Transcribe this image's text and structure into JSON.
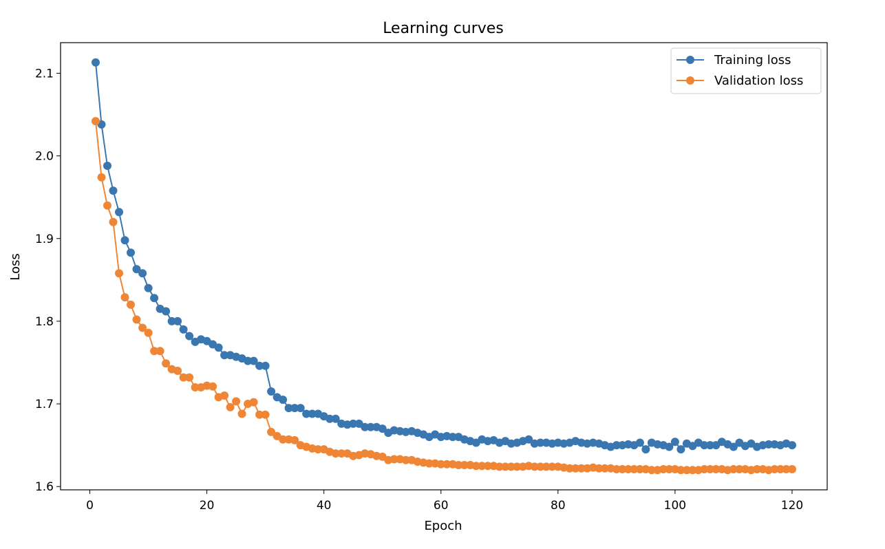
{
  "chart_data": {
    "type": "line",
    "title": "Learning curves",
    "xlabel": "Epoch",
    "ylabel": "Loss",
    "xlim": [
      -5.0,
      126.0
    ],
    "ylim": [
      1.596,
      2.137
    ],
    "xticks": [
      0,
      20,
      40,
      60,
      80,
      100,
      120
    ],
    "yticks": [
      1.6,
      1.7,
      1.8,
      1.9,
      2.0,
      2.1
    ],
    "legend_position": "top-right",
    "grid": false,
    "series": [
      {
        "name": "Training loss",
        "color": "#3a76af",
        "marker": "circle",
        "x": [
          1,
          2,
          3,
          4,
          5,
          6,
          7,
          8,
          9,
          10,
          11,
          12,
          13,
          14,
          15,
          16,
          17,
          18,
          19,
          20,
          21,
          22,
          23,
          24,
          25,
          26,
          27,
          28,
          29,
          30,
          31,
          32,
          33,
          34,
          35,
          36,
          37,
          38,
          39,
          40,
          41,
          42,
          43,
          44,
          45,
          46,
          47,
          48,
          49,
          50,
          51,
          52,
          53,
          54,
          55,
          56,
          57,
          58,
          59,
          60,
          61,
          62,
          63,
          64,
          65,
          66,
          67,
          68,
          69,
          70,
          71,
          72,
          73,
          74,
          75,
          76,
          77,
          78,
          79,
          80,
          81,
          82,
          83,
          84,
          85,
          86,
          87,
          88,
          89,
          90,
          91,
          92,
          93,
          94,
          95,
          96,
          97,
          98,
          99,
          100,
          101,
          102,
          103,
          104,
          105,
          106,
          107,
          108,
          109,
          110,
          111,
          112,
          113,
          114,
          115,
          116,
          117,
          118,
          119,
          120
        ],
        "y": [
          2.113,
          2.038,
          1.988,
          1.958,
          1.932,
          1.898,
          1.883,
          1.863,
          1.858,
          1.84,
          1.828,
          1.815,
          1.812,
          1.8,
          1.8,
          1.79,
          1.782,
          1.775,
          1.778,
          1.776,
          1.772,
          1.768,
          1.759,
          1.759,
          1.757,
          1.755,
          1.752,
          1.752,
          1.746,
          1.746,
          1.715,
          1.708,
          1.705,
          1.695,
          1.695,
          1.695,
          1.688,
          1.688,
          1.688,
          1.685,
          1.682,
          1.682,
          1.676,
          1.675,
          1.676,
          1.676,
          1.672,
          1.672,
          1.672,
          1.67,
          1.665,
          1.668,
          1.667,
          1.666,
          1.667,
          1.665,
          1.663,
          1.66,
          1.663,
          1.66,
          1.661,
          1.66,
          1.66,
          1.657,
          1.655,
          1.653,
          1.657,
          1.655,
          1.656,
          1.653,
          1.655,
          1.652,
          1.653,
          1.655,
          1.657,
          1.652,
          1.653,
          1.653,
          1.652,
          1.653,
          1.652,
          1.653,
          1.655,
          1.653,
          1.652,
          1.653,
          1.652,
          1.65,
          1.648,
          1.65,
          1.65,
          1.651,
          1.65,
          1.653,
          1.645,
          1.653,
          1.651,
          1.65,
          1.648,
          1.654,
          1.645,
          1.652,
          1.649,
          1.653,
          1.65,
          1.65,
          1.65,
          1.654,
          1.651,
          1.648,
          1.653,
          1.649,
          1.652,
          1.648,
          1.65,
          1.651,
          1.651,
          1.65,
          1.652,
          1.65
        ]
      },
      {
        "name": "Validation loss",
        "color": "#ef8636",
        "marker": "circle",
        "x": [
          1,
          2,
          3,
          4,
          5,
          6,
          7,
          8,
          9,
          10,
          11,
          12,
          13,
          14,
          15,
          16,
          17,
          18,
          19,
          20,
          21,
          22,
          23,
          24,
          25,
          26,
          27,
          28,
          29,
          30,
          31,
          32,
          33,
          34,
          35,
          36,
          37,
          38,
          39,
          40,
          41,
          42,
          43,
          44,
          45,
          46,
          47,
          48,
          49,
          50,
          51,
          52,
          53,
          54,
          55,
          56,
          57,
          58,
          59,
          60,
          61,
          62,
          63,
          64,
          65,
          66,
          67,
          68,
          69,
          70,
          71,
          72,
          73,
          74,
          75,
          76,
          77,
          78,
          79,
          80,
          81,
          82,
          83,
          84,
          85,
          86,
          87,
          88,
          89,
          90,
          91,
          92,
          93,
          94,
          95,
          96,
          97,
          98,
          99,
          100,
          101,
          102,
          103,
          104,
          105,
          106,
          107,
          108,
          109,
          110,
          111,
          112,
          113,
          114,
          115,
          116,
          117,
          118,
          119,
          120
        ],
        "y": [
          2.042,
          1.974,
          1.94,
          1.92,
          1.858,
          1.829,
          1.82,
          1.802,
          1.792,
          1.786,
          1.764,
          1.764,
          1.749,
          1.742,
          1.74,
          1.732,
          1.732,
          1.72,
          1.72,
          1.722,
          1.721,
          1.708,
          1.71,
          1.696,
          1.703,
          1.688,
          1.7,
          1.702,
          1.687,
          1.687,
          1.666,
          1.661,
          1.657,
          1.657,
          1.656,
          1.65,
          1.648,
          1.646,
          1.645,
          1.645,
          1.642,
          1.64,
          1.64,
          1.64,
          1.637,
          1.638,
          1.64,
          1.639,
          1.637,
          1.636,
          1.632,
          1.633,
          1.633,
          1.632,
          1.632,
          1.63,
          1.629,
          1.628,
          1.628,
          1.627,
          1.627,
          1.627,
          1.626,
          1.626,
          1.626,
          1.625,
          1.625,
          1.625,
          1.625,
          1.624,
          1.624,
          1.624,
          1.624,
          1.624,
          1.625,
          1.624,
          1.624,
          1.624,
          1.624,
          1.624,
          1.623,
          1.622,
          1.622,
          1.622,
          1.622,
          1.623,
          1.622,
          1.622,
          1.622,
          1.621,
          1.621,
          1.621,
          1.621,
          1.621,
          1.621,
          1.62,
          1.62,
          1.621,
          1.621,
          1.621,
          1.62,
          1.62,
          1.62,
          1.62,
          1.621,
          1.621,
          1.621,
          1.621,
          1.62,
          1.621,
          1.621,
          1.621,
          1.62,
          1.621,
          1.621,
          1.62,
          1.621,
          1.621,
          1.621,
          1.621
        ]
      }
    ]
  }
}
